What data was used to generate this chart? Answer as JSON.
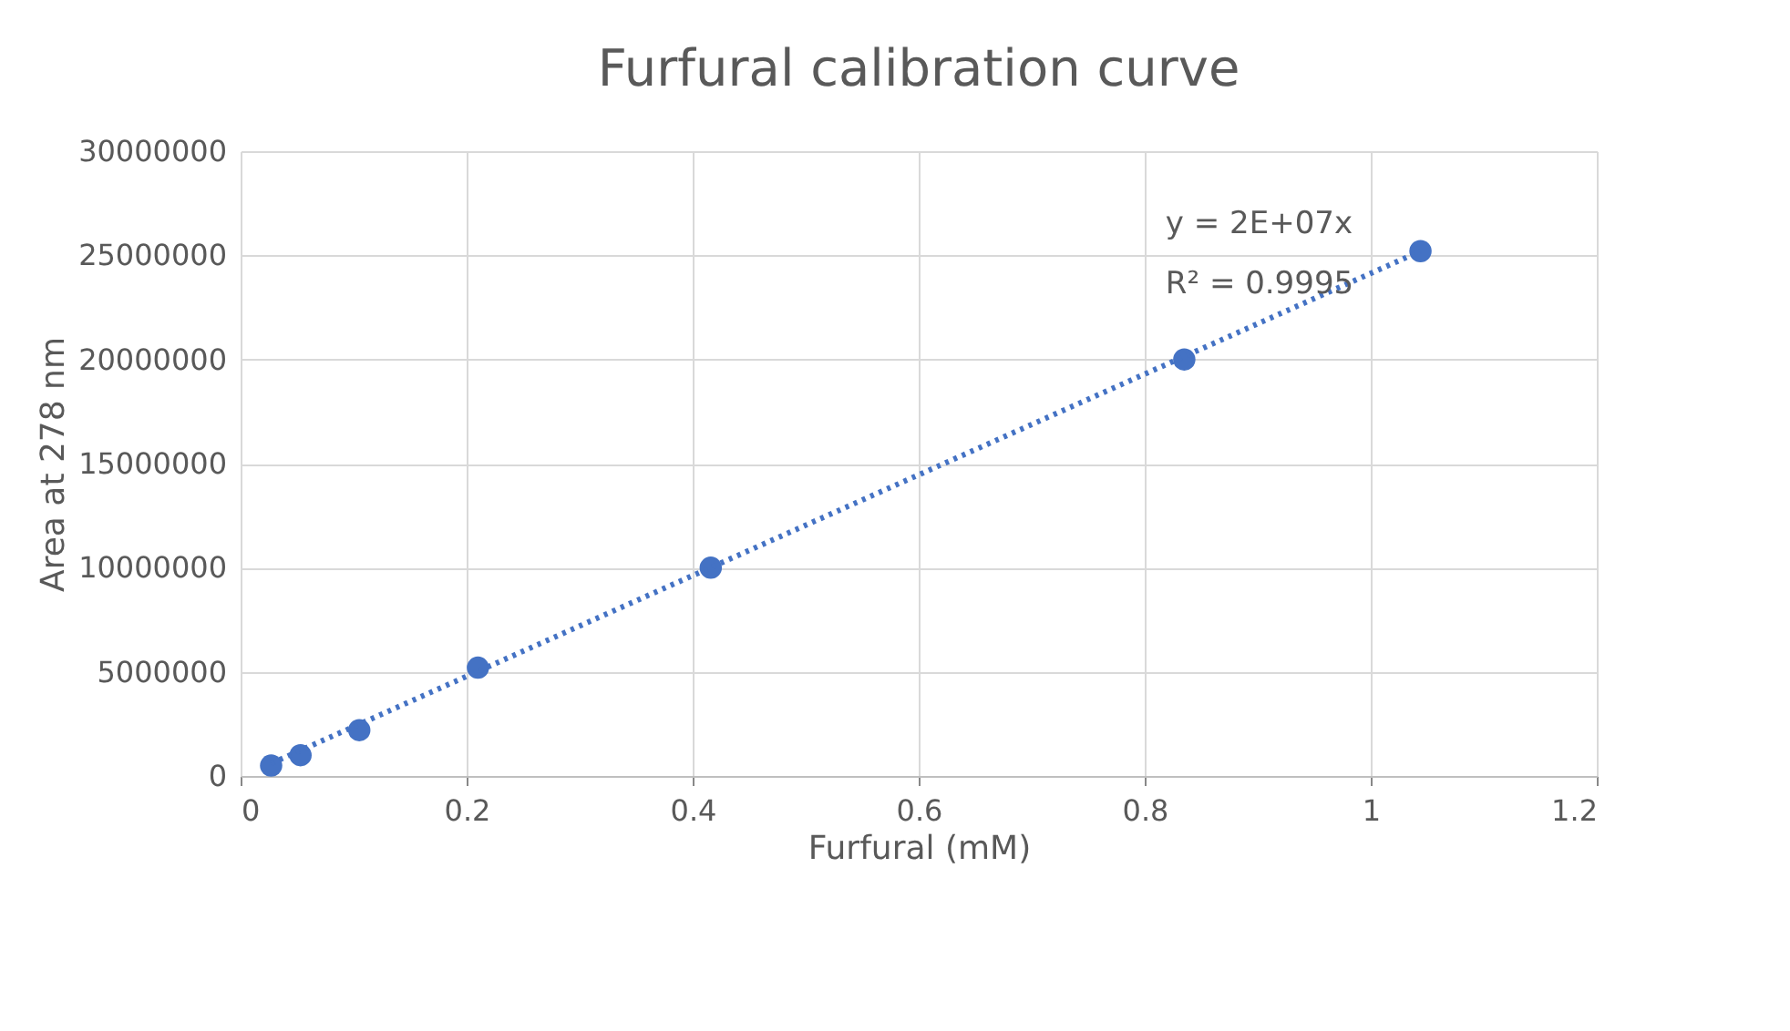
{
  "chart_data": {
    "type": "scatter",
    "title": "Furfural calibration curve",
    "xlabel": "Furfural  (mM)",
    "ylabel": "Area at 278 nm",
    "xlim": [
      0,
      1.2
    ],
    "xticks": [
      0,
      0.2,
      0.4,
      0.6,
      0.8,
      1,
      1.2
    ],
    "ylim": [
      0,
      30000000
    ],
    "yticks": [
      0,
      5000000,
      10000000,
      15000000,
      20000000,
      25000000,
      30000000
    ],
    "grid": true,
    "annotations": [
      "y = 2E+07x",
      "R² = 0.9995"
    ],
    "series": [
      {
        "color": "#4472c4",
        "marker": "circle",
        "x": [
          0.027,
          0.053,
          0.105,
          0.21,
          0.416,
          0.835,
          1.044
        ],
        "values": [
          500000,
          1000000,
          2200000,
          5200000,
          10000000,
          20000000,
          25200000
        ]
      },
      {
        "type": "line",
        "color": "#4472c4",
        "line_style": "dotted",
        "x": [
          0.027,
          1.044
        ],
        "values": [
          600000,
          25200000
        ]
      }
    ]
  }
}
